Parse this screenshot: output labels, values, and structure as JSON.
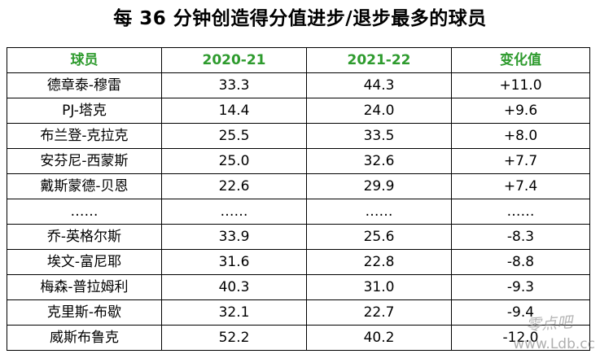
{
  "title": "每 36 分钟创造得分值进步/退步最多的球员",
  "chart_data": {
    "type": "table",
    "title": "每 36 分钟创造得分值进步/退步最多的球员",
    "columns": [
      "球员",
      "2020-21",
      "2021-22",
      "变化值"
    ],
    "rows": [
      [
        "德章泰-穆雷",
        "33.3",
        "44.3",
        "+11.0"
      ],
      [
        "PJ-塔克",
        "14.4",
        "24.0",
        "+9.6"
      ],
      [
        "布兰登-克拉克",
        "25.5",
        "33.5",
        "+8.0"
      ],
      [
        "安芬尼-西蒙斯",
        "25.0",
        "32.6",
        "+7.7"
      ],
      [
        "戴斯蒙德-贝恩",
        "22.6",
        "29.9",
        "+7.4"
      ],
      [
        "……",
        "……",
        "……",
        "……"
      ],
      [
        "乔-英格尔斯",
        "33.9",
        "25.6",
        "-8.3"
      ],
      [
        "埃文-富尼耶",
        "31.6",
        "22.8",
        "-8.8"
      ],
      [
        "梅森-普拉姆利",
        "40.3",
        "31.0",
        "-9.3"
      ],
      [
        "克里斯-布歇",
        "32.1",
        "22.7",
        "-9.4"
      ],
      [
        "威斯布鲁克",
        "52.2",
        "40.2",
        "-12.0"
      ]
    ]
  },
  "colors": {
    "header_text": "#2e9b2e",
    "border": "#000000",
    "text": "#000000"
  },
  "watermark": {
    "cn": "零点吧",
    "url": "www.Ldb.cc"
  }
}
